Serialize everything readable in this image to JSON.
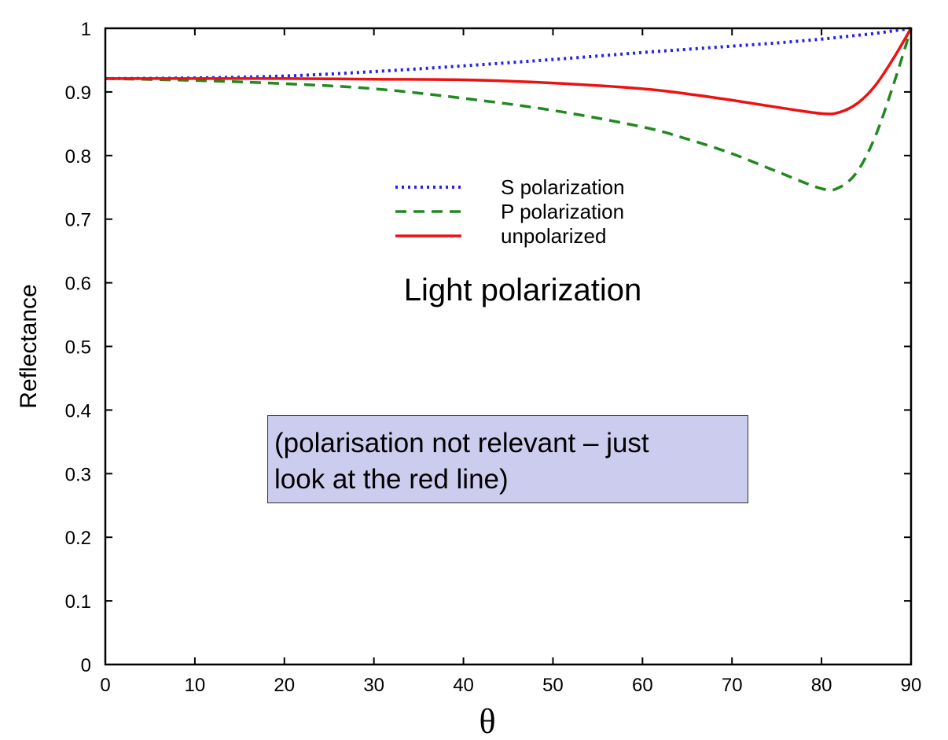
{
  "chart_data": {
    "type": "line",
    "title": "Light polarization",
    "xlabel": "θ",
    "ylabel": "Reflectance",
    "xlim": [
      0,
      90
    ],
    "ylim": [
      0,
      1
    ],
    "xticks": [
      "0",
      "10",
      "20",
      "30",
      "40",
      "50",
      "60",
      "70",
      "80",
      "90"
    ],
    "yticks": [
      "0",
      "0.1",
      "0.2",
      "0.3",
      "0.4",
      "0.5",
      "0.6",
      "0.7",
      "0.8",
      "0.9",
      "1"
    ],
    "grid": false,
    "legend_position": "top-center",
    "x": [
      0,
      10,
      20,
      30,
      40,
      50,
      60,
      65,
      70,
      75,
      80,
      82,
      84,
      86,
      88,
      90
    ],
    "series": [
      {
        "name": "S polarization",
        "color": "#2222ee",
        "style": "dotted",
        "values": [
          0.921,
          0.922,
          0.925,
          0.932,
          0.941,
          0.951,
          0.962,
          0.967,
          0.972,
          0.977,
          0.983,
          0.986,
          0.989,
          0.992,
          0.996,
          1.0
        ]
      },
      {
        "name": "P polarization",
        "color": "#228822",
        "style": "dashed",
        "values": [
          0.921,
          0.918,
          0.913,
          0.905,
          0.89,
          0.871,
          0.845,
          0.826,
          0.803,
          0.775,
          0.748,
          0.75,
          0.775,
          0.83,
          0.91,
          1.0
        ]
      },
      {
        "name": "unpolarized",
        "color": "#ee1111",
        "style": "solid",
        "values": [
          0.921,
          0.921,
          0.921,
          0.92,
          0.919,
          0.914,
          0.905,
          0.897,
          0.887,
          0.876,
          0.866,
          0.868,
          0.882,
          0.91,
          0.952,
          1.0
        ]
      }
    ]
  },
  "note": {
    "line1": "(polarisation not relevant – just",
    "line2": "look at the red line)"
  }
}
